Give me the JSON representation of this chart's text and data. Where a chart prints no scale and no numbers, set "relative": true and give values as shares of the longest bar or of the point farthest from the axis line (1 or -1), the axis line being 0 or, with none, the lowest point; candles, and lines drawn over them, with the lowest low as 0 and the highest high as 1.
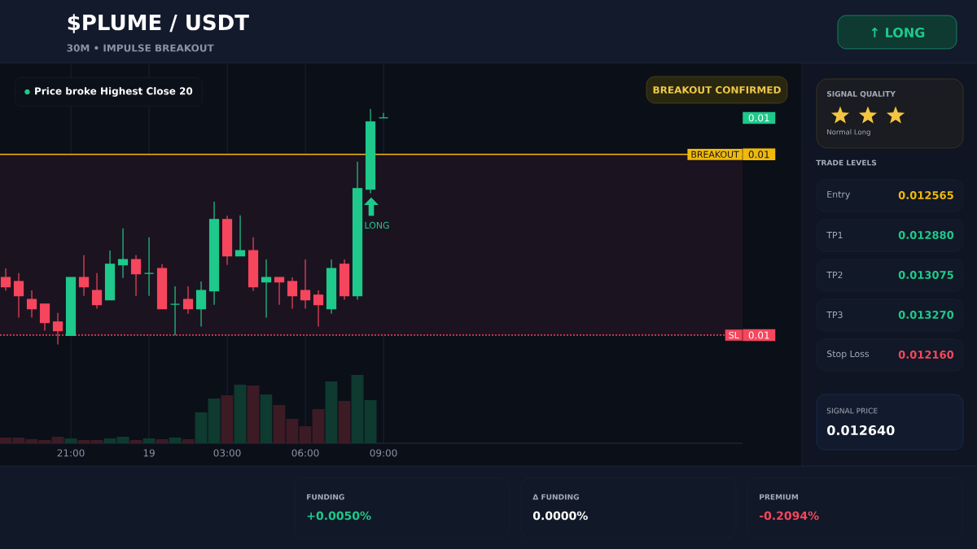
{
  "chart_data": [
    {
      "type": "candlestick",
      "title": "$PLUME / USDT",
      "subtitle": "30M • IMPULSE BREAKOUT",
      "relative": true,
      "grid": "x",
      "categories": [
        null,
        null,
        null,
        null,
        null,
        "21:00",
        null,
        null,
        null,
        null,
        null,
        "19",
        null,
        null,
        null,
        null,
        null,
        "03:00",
        null,
        null,
        null,
        null,
        null,
        "06:00",
        null,
        null,
        null,
        null,
        null,
        "09:00"
      ],
      "ohlc": [
        [
          0.285,
          0.323,
          0.228,
          0.245
        ],
        [
          0.268,
          0.303,
          0.114,
          0.207
        ],
        [
          0.192,
          0.23,
          0.114,
          0.152
        ],
        [
          0.172,
          0.172,
          0.059,
          0.093
        ],
        [
          0.096,
          0.134,
          0,
          0.059
        ],
        [
          0.039,
          0.285,
          0.039,
          0.285
        ],
        [
          0.285,
          0.379,
          0.207,
          0.245
        ],
        [
          0.23,
          0.303,
          0.152,
          0.169
        ],
        [
          0.19,
          0.399,
          0.19,
          0.341
        ],
        [
          0.338,
          0.493,
          0.283,
          0.361
        ],
        [
          0.361,
          0.379,
          0.207,
          0.3
        ],
        [
          0.302,
          0.455,
          0.207,
          0.302
        ],
        [
          0.323,
          0.341,
          0.152,
          0.152
        ],
        [
          0.171,
          0.247,
          0.039,
          0.171
        ],
        [
          0.192,
          0.247,
          0.131,
          0.152
        ],
        [
          0.152,
          0.268,
          0.076,
          0.23
        ],
        [
          0.228,
          0.606,
          0.169,
          0.531
        ],
        [
          0.531,
          0.547,
          0.338,
          0.376
        ],
        [
          0.376,
          0.548,
          0.376,
          0.399
        ],
        [
          0.399,
          0.455,
          0.227,
          0.245
        ],
        [
          0.266,
          0.361,
          0.114,
          0.285
        ],
        [
          0.285,
          0.285,
          0.169,
          0.266
        ],
        [
          0.268,
          0.285,
          0.152,
          0.207
        ],
        [
          0.23,
          0.361,
          0.152,
          0.19
        ],
        [
          0.21,
          0.23,
          0.076,
          0.169
        ],
        [
          0.152,
          0.361,
          0.131,
          0.323
        ],
        [
          0.341,
          0.361,
          0.19,
          0.207
        ],
        [
          0.207,
          0.776,
          0.19,
          0.662
        ],
        [
          0.659,
          1,
          0.642,
          0.945
        ],
        [
          0.962,
          0.983,
          0.962,
          0.962
        ]
      ],
      "colors": [
        "#f6465d",
        "#f6465d",
        "#f6465d",
        "#f6465d",
        "#f6465d",
        "#1ec98b",
        "#f6465d",
        "#f6465d",
        "#1ec98b",
        "#1ec98b",
        "#f6465d",
        "#1ec98b",
        "#f6465d",
        "#1ec98b",
        "#f6465d",
        "#1ec98b",
        "#1ec98b",
        "#f6465d",
        "#1ec98b",
        "#f6465d",
        "#1ec98b",
        "#f6465d",
        "#f6465d",
        "#f6465d",
        "#f6465d",
        "#1ec98b",
        "#f6465d",
        "#1ec98b",
        "#1ec98b",
        "#1ec98b"
      ],
      "ref_lines": [
        {
          "axis": "y",
          "value": 0.807,
          "label": "BREAKOUT",
          "color": "#f0b90b",
          "line_style": "solid"
        },
        {
          "axis": "y",
          "value": 0.04,
          "label": "SL",
          "color": "#f6465d",
          "line_style": "dotted"
        }
      ],
      "bands": [
        {
          "axis": "y",
          "from": 0.04,
          "to": 0.807,
          "color": "#1c1320"
        }
      ],
      "annotations": [
        "Price broke Highest Close 20",
        "BREAKOUT CONFIRMED",
        "LONG",
        "0.01",
        "0.01",
        "0.01"
      ]
    },
    {
      "type": "bar",
      "relative": true,
      "categories": [
        null,
        null,
        null,
        null,
        null,
        null,
        null,
        null,
        null,
        null,
        null,
        null,
        null,
        null,
        null,
        null,
        null,
        null,
        null,
        null,
        null,
        null,
        null,
        null,
        null,
        null,
        null,
        null,
        null,
        null
      ],
      "values": [
        0.083,
        0.083,
        0.06,
        0.048,
        0.095,
        0.071,
        0.048,
        0.048,
        0.071,
        0.095,
        0.048,
        0.071,
        0.06,
        0.083,
        0.06,
        0.452,
        0.655,
        0.702,
        0.857,
        0.845,
        0.714,
        0.56,
        0.357,
        0.25,
        0.5,
        0.905,
        0.619,
        1,
        0.631,
        null
      ],
      "colors": [
        "#3c1b25",
        "#3c1b25",
        "#3c1b25",
        "#3c1b25",
        "#3c1b25",
        "#0e3a30",
        "#3c1b25",
        "#3c1b25",
        "#0e3a30",
        "#0e3a30",
        "#3c1b25",
        "#0e3a30",
        "#3c1b25",
        "#0e3a30",
        "#3c1b25",
        "#0e3a30",
        "#0e3a30",
        "#3c1b25",
        "#0e3a30",
        "#3c1b25",
        "#0e3a30",
        "#3c1b25",
        "#3c1b25",
        "#3c1b25",
        "#3c1b25",
        "#0e3a30",
        "#3c1b25",
        "#0e3a30",
        "#0e3a30",
        "#0e3a30"
      ]
    },
    {
      "type": "other",
      "annotations": [
        "↑ LONG",
        "SIGNAL QUALITY",
        "Normal Long",
        "TRADE LEVELS",
        "Entry",
        "0.012565",
        "TP1",
        "0.012880",
        "TP2",
        "0.013075",
        "TP3",
        "0.013270",
        "Stop Loss",
        "0.012160",
        "SIGNAL PRICE",
        "0.012640",
        "FUNDING",
        "+0.0050%",
        "Δ FUNDING",
        "0.0000%",
        "PREMIUM",
        "-0.2094%"
      ]
    }
  ]
}
